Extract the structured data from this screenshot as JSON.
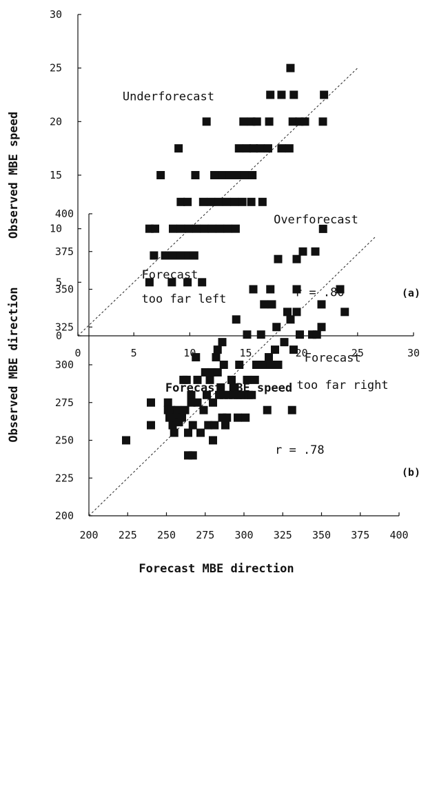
{
  "chart_data": [
    {
      "type": "scatter",
      "panel_label": "(a)",
      "xlabel": "Forecast MBE speed",
      "ylabel": "Observed MBE speed",
      "xlim": [
        0,
        30
      ],
      "ylim": [
        0,
        30
      ],
      "xticks": [
        0,
        5,
        10,
        15,
        20,
        25,
        30
      ],
      "yticks": [
        0,
        5,
        10,
        15,
        20,
        25,
        30
      ],
      "reference_line": "1:1 dashed",
      "annotations": [
        {
          "text": "Underforecast",
          "x": 4,
          "y": 22
        },
        {
          "text": "Overforecast",
          "x": 17.5,
          "y": 10.5
        },
        {
          "text": "r = .80",
          "x": 19.4,
          "y": 3.7
        }
      ],
      "points": [
        [
          19.0,
          25
        ],
        [
          17.2,
          22.5
        ],
        [
          18.2,
          22.5
        ],
        [
          19.3,
          22.5
        ],
        [
          22.0,
          22.5
        ],
        [
          11.5,
          20
        ],
        [
          14.8,
          20
        ],
        [
          15.5,
          20
        ],
        [
          16.0,
          20
        ],
        [
          17.1,
          20
        ],
        [
          19.2,
          20
        ],
        [
          19.8,
          20
        ],
        [
          20.3,
          20
        ],
        [
          21.9,
          20
        ],
        [
          9.0,
          17.5
        ],
        [
          14.4,
          17.5
        ],
        [
          15.1,
          17.5
        ],
        [
          15.7,
          17.5
        ],
        [
          16.3,
          17.5
        ],
        [
          17.0,
          17.5
        ],
        [
          18.2,
          17.5
        ],
        [
          18.9,
          17.5
        ],
        [
          7.4,
          15
        ],
        [
          10.5,
          15
        ],
        [
          12.2,
          15
        ],
        [
          12.9,
          15
        ],
        [
          13.6,
          15
        ],
        [
          14.3,
          15
        ],
        [
          14.9,
          15
        ],
        [
          15.6,
          15
        ],
        [
          9.2,
          12.5
        ],
        [
          9.8,
          12.5
        ],
        [
          11.2,
          12.5
        ],
        [
          11.9,
          12.5
        ],
        [
          12.6,
          12.5
        ],
        [
          13.3,
          12.5
        ],
        [
          14.0,
          12.5
        ],
        [
          14.7,
          12.5
        ],
        [
          15.5,
          12.5
        ],
        [
          16.5,
          12.5
        ],
        [
          6.4,
          10
        ],
        [
          6.9,
          10
        ],
        [
          8.5,
          10
        ],
        [
          9.2,
          10
        ],
        [
          9.9,
          10
        ],
        [
          10.6,
          10
        ],
        [
          11.3,
          10
        ],
        [
          12.0,
          10
        ],
        [
          12.7,
          10
        ],
        [
          13.4,
          10
        ],
        [
          14.1,
          10
        ],
        [
          6.8,
          7.5
        ],
        [
          7.8,
          7.5
        ],
        [
          8.5,
          7.5
        ],
        [
          9.2,
          7.5
        ],
        [
          9.9,
          7.5
        ],
        [
          10.4,
          7.5
        ],
        [
          6.4,
          5
        ],
        [
          8.4,
          5
        ],
        [
          9.8,
          5
        ],
        [
          11.1,
          5
        ]
      ]
    },
    {
      "type": "scatter",
      "panel_label": "(b)",
      "xlabel": "Forecast MBE direction",
      "ylabel": "Observed MBE direction",
      "xlim": [
        200,
        400
      ],
      "ylim": [
        200,
        400
      ],
      "xticks": [
        200,
        225,
        250,
        275,
        300,
        325,
        350,
        375,
        400
      ],
      "yticks": [
        200,
        225,
        250,
        275,
        300,
        325,
        350,
        375,
        400
      ],
      "reference_line": "1:1 dashed",
      "annotations": [
        {
          "text": "Forecast",
          "x": 234,
          "y": 357
        },
        {
          "text": "too far left",
          "x": 234,
          "y": 341
        },
        {
          "text": "Forecast",
          "x": 339,
          "y": 302
        },
        {
          "text": "too far right",
          "x": 334,
          "y": 284
        },
        {
          "text": "r = .78",
          "x": 320,
          "y": 241
        }
      ],
      "points": [
        [
          224,
          250
        ],
        [
          240,
          275
        ],
        [
          240,
          260
        ],
        [
          251,
          275
        ],
        [
          251,
          270
        ],
        [
          252,
          265
        ],
        [
          253,
          270
        ],
        [
          254,
          260
        ],
        [
          255,
          255
        ],
        [
          256,
          265
        ],
        [
          257,
          270
        ],
        [
          258,
          262
        ],
        [
          260,
          265
        ],
        [
          261,
          290
        ],
        [
          263,
          290
        ],
        [
          262,
          270
        ],
        [
          264,
          255
        ],
        [
          264,
          240
        ],
        [
          267,
          240
        ],
        [
          266,
          280
        ],
        [
          266,
          275
        ],
        [
          267,
          260
        ],
        [
          269,
          305
        ],
        [
          270,
          290
        ],
        [
          270,
          275
        ],
        [
          272,
          255
        ],
        [
          274,
          270
        ],
        [
          275,
          295
        ],
        [
          276,
          280
        ],
        [
          277,
          260
        ],
        [
          278,
          290
        ],
        [
          279,
          295
        ],
        [
          280,
          250
        ],
        [
          280,
          275
        ],
        [
          281,
          260
        ],
        [
          282,
          305
        ],
        [
          283,
          310
        ],
        [
          283,
          295
        ],
        [
          284,
          280
        ],
        [
          285,
          285
        ],
        [
          286,
          315
        ],
        [
          286,
          265
        ],
        [
          287,
          300
        ],
        [
          287,
          280
        ],
        [
          288,
          260
        ],
        [
          289,
          265
        ],
        [
          290,
          280
        ],
        [
          292,
          290
        ],
        [
          293,
          280
        ],
        [
          294,
          285
        ],
        [
          295,
          330
        ],
        [
          296,
          280
        ],
        [
          296,
          265
        ],
        [
          297,
          300
        ],
        [
          298,
          280
        ],
        [
          300,
          280
        ],
        [
          301,
          265
        ],
        [
          302,
          290
        ],
        [
          302,
          320
        ],
        [
          303,
          280
        ],
        [
          305,
          280
        ],
        [
          306,
          350
        ],
        [
          307,
          290
        ],
        [
          308,
          300
        ],
        [
          310,
          300
        ],
        [
          311,
          320
        ],
        [
          312,
          300
        ],
        [
          313,
          340
        ],
        [
          314,
          300
        ],
        [
          315,
          270
        ],
        [
          316,
          305
        ],
        [
          317,
          300
        ],
        [
          317,
          350
        ],
        [
          318,
          340
        ],
        [
          320,
          310
        ],
        [
          321,
          325
        ],
        [
          322,
          300
        ],
        [
          322,
          370
        ],
        [
          326,
          315
        ],
        [
          328,
          335
        ],
        [
          330,
          330
        ],
        [
          331,
          270
        ],
        [
          332,
          310
        ],
        [
          334,
          335
        ],
        [
          334,
          350
        ],
        [
          334,
          370
        ],
        [
          336,
          320
        ],
        [
          338,
          375
        ],
        [
          344,
          320
        ],
        [
          346,
          375
        ],
        [
          347,
          320
        ],
        [
          350,
          325
        ],
        [
          350,
          340
        ],
        [
          351,
          390
        ],
        [
          362,
          350
        ],
        [
          365,
          335
        ]
      ]
    }
  ]
}
